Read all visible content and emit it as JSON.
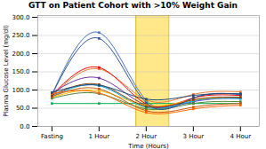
{
  "chart_data": {
    "type": "line",
    "title": "GTT on Patient Cohort with >10% Weight Gain",
    "xlabel": "Time (Hours)",
    "ylabel": "Plasma Glucose Level (mg/dl)",
    "x": [
      0,
      1,
      2,
      3,
      4
    ],
    "xlim": [
      -0.3,
      4.4
    ],
    "xticks": [
      {
        "value": 0,
        "label": "Fasting"
      },
      {
        "value": 1,
        "label": "1 Hour"
      },
      {
        "value": 2,
        "label": "2 Hour"
      },
      {
        "value": 3,
        "label": "3 Hour"
      },
      {
        "value": 4,
        "label": "4 Hour"
      }
    ],
    "ylim": [
      0,
      305
    ],
    "yticks": [
      {
        "value": 0,
        "label": "0.0"
      },
      {
        "value": 50,
        "label": "50.0"
      },
      {
        "value": 100,
        "label": "100.0"
      },
      {
        "value": 150,
        "label": "150.0"
      },
      {
        "value": 200,
        "label": "200.0"
      },
      {
        "value": 250,
        "label": "250.0"
      },
      {
        "value": 300,
        "label": "300.0"
      }
    ],
    "grid": true,
    "marker": "square",
    "highlight": {
      "xmin": 1.78,
      "xmax": 2.48,
      "color": "#FFE88A",
      "border_color": "#C8A000"
    },
    "series": [
      {
        "color": "#4472C4",
        "values": [
          88,
          258,
          72,
          78,
          88
        ]
      },
      {
        "color": "#00B050",
        "values": [
          63,
          63,
          63,
          63,
          63
        ]
      },
      {
        "color": "#ED7D31",
        "values": [
          83,
          158,
          73,
          88,
          95
        ]
      },
      {
        "color": "#FF0000",
        "values": [
          86,
          162,
          62,
          78,
          85
        ]
      },
      {
        "color": "#7030A0",
        "values": [
          92,
          133,
          58,
          68,
          78
        ]
      },
      {
        "color": "#00B0F0",
        "values": [
          82,
          112,
          52,
          70,
          76
        ]
      },
      {
        "color": "#FFC000",
        "values": [
          80,
          98,
          58,
          73,
          80
        ]
      },
      {
        "color": "#548235",
        "values": [
          77,
          90,
          48,
          63,
          68
        ]
      },
      {
        "color": "#C55A11",
        "values": [
          82,
          103,
          43,
          53,
          63
        ]
      },
      {
        "color": "#2F5496",
        "values": [
          87,
          242,
          65,
          78,
          88
        ]
      },
      {
        "color": "#843C0C",
        "values": [
          85,
          115,
          55,
          73,
          80
        ]
      },
      {
        "color": "#FF6600",
        "values": [
          90,
          92,
          38,
          48,
          58
        ]
      },
      {
        "color": "#1F4E79",
        "values": [
          93,
          113,
          75,
          85,
          90
        ]
      }
    ]
  }
}
